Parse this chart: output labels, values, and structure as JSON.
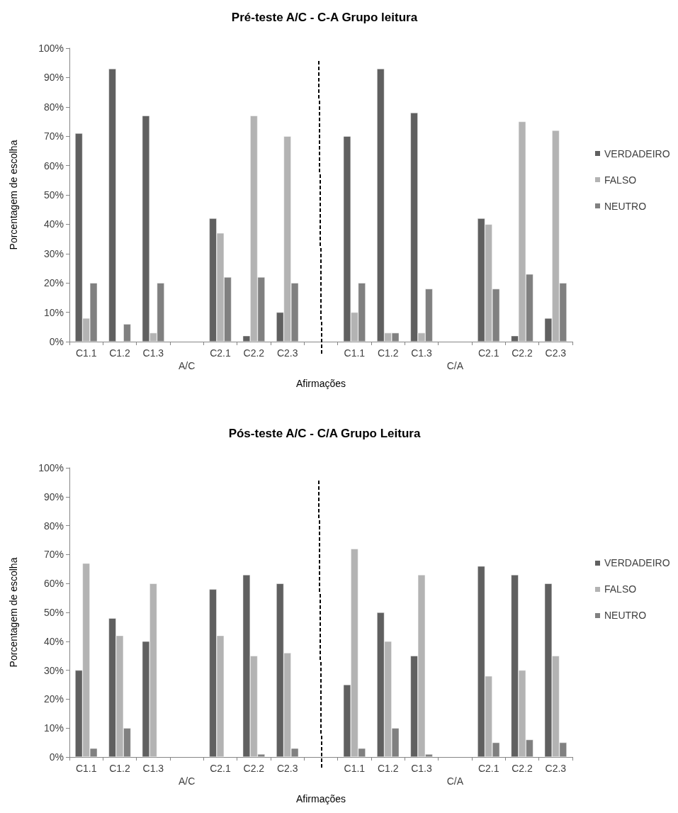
{
  "chart_data": [
    {
      "type": "bar",
      "title": "Pré-teste A/C - C-A Grupo leitura",
      "xlabel": "Afirmações",
      "ylabel": "Porcentagem de escolha",
      "categories": [
        "C1.1",
        "C1.2",
        "C1.3",
        null,
        "C2.1",
        "C2.2",
        "C2.3",
        null,
        "C1.1",
        "C1.2",
        "C1.3",
        null,
        "C2.1",
        "C2.2",
        "C2.3"
      ],
      "series": [
        {
          "name": "VERDADEIRO",
          "color": "#606060",
          "values": [
            71,
            93,
            77,
            null,
            42,
            2,
            10,
            null,
            70,
            93,
            78,
            null,
            42,
            2,
            8
          ]
        },
        {
          "name": "FALSO",
          "color": "#b3b3b3",
          "values": [
            8,
            null,
            3,
            null,
            37,
            77,
            70,
            null,
            10,
            3,
            3,
            null,
            40,
            75,
            72
          ]
        },
        {
          "name": "NEUTRO",
          "color": "#808080",
          "values": [
            20,
            6,
            20,
            null,
            22,
            22,
            20,
            null,
            20,
            3,
            18,
            null,
            18,
            23,
            20
          ]
        }
      ],
      "ylim": [
        0,
        100
      ],
      "yticks": [
        {
          "value": 0,
          "label": "0%"
        },
        {
          "value": 10,
          "label": "10%"
        },
        {
          "value": 20,
          "label": "20%"
        },
        {
          "value": 30,
          "label": "30%"
        },
        {
          "value": 40,
          "label": "40%"
        },
        {
          "value": 50,
          "label": "50%"
        },
        {
          "value": 60,
          "label": "60%"
        },
        {
          "value": 70,
          "label": "70%"
        },
        {
          "value": 80,
          "label": "80%"
        },
        {
          "value": 90,
          "label": "90%"
        },
        {
          "value": 100,
          "label": "100%"
        }
      ],
      "grid": false,
      "legend": "right",
      "annotations": [
        "A/C",
        "C/A"
      ]
    },
    {
      "type": "bar",
      "title": "Pós-teste A/C - C/A Grupo Leitura",
      "xlabel": "Afirmações",
      "ylabel": "Porcentagem de escolha",
      "categories": [
        "C1.1",
        "C1.2",
        "C1.3",
        null,
        "C2.1",
        "C2.2",
        "C2.3",
        null,
        "C1.1",
        "C1.2",
        "C1.3",
        null,
        "C2.1",
        "C2.2",
        "C2.3"
      ],
      "series": [
        {
          "name": "VERDADEIRO",
          "color": "#606060",
          "values": [
            30,
            48,
            40,
            null,
            58,
            63,
            60,
            null,
            25,
            50,
            35,
            null,
            66,
            63,
            60
          ]
        },
        {
          "name": "FALSO",
          "color": "#b3b3b3",
          "values": [
            67,
            42,
            60,
            null,
            42,
            35,
            36,
            null,
            72,
            40,
            63,
            null,
            28,
            30,
            35
          ]
        },
        {
          "name": "NEUTRO",
          "color": "#808080",
          "values": [
            3,
            10,
            null,
            null,
            null,
            1,
            3,
            null,
            3,
            10,
            1,
            null,
            5,
            6,
            5
          ]
        }
      ],
      "ylim": [
        0,
        100
      ],
      "yticks": [
        {
          "value": 0,
          "label": "0%"
        },
        {
          "value": 10,
          "label": "10%"
        },
        {
          "value": 20,
          "label": "20%"
        },
        {
          "value": 30,
          "label": "30%"
        },
        {
          "value": 40,
          "label": "40%"
        },
        {
          "value": 50,
          "label": "50%"
        },
        {
          "value": 60,
          "label": "60%"
        },
        {
          "value": 70,
          "label": "70%"
        },
        {
          "value": 80,
          "label": "80%"
        },
        {
          "value": 90,
          "label": "90%"
        },
        {
          "value": 100,
          "label": "100%"
        }
      ],
      "grid": false,
      "legend": "right",
      "annotations": [
        "A/C",
        "C/A"
      ]
    }
  ]
}
